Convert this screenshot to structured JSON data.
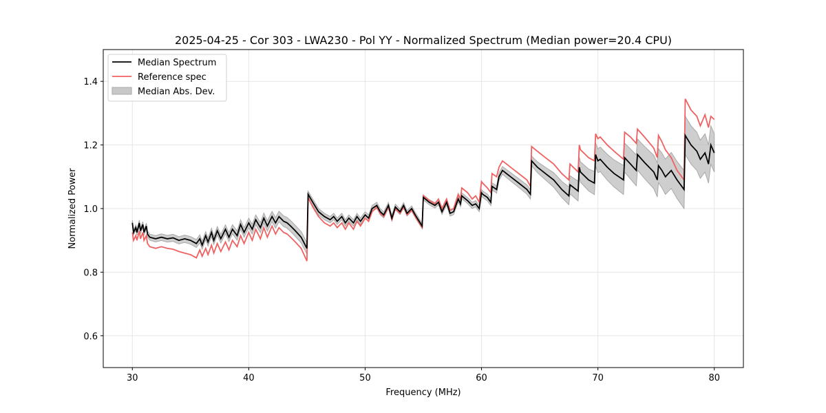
{
  "chart_data": {
    "type": "line",
    "title": "2025-04-25 - Cor 303 - LWA230 - Pol YY - Normalized Spectrum (Median power=20.4 CPU)",
    "xlabel": "Frequency (MHz)",
    "ylabel": "Normalized Power",
    "xlim": [
      27.5,
      82.5
    ],
    "ylim": [
      0.5,
      1.5
    ],
    "xticks": [
      30,
      40,
      50,
      60,
      70,
      80
    ],
    "xtick_labels": [
      "30",
      "40",
      "50",
      "60",
      "70",
      "80"
    ],
    "yticks": [
      0.6,
      0.8,
      1.0,
      1.2,
      1.4
    ],
    "ytick_labels": [
      "0.6",
      "0.8",
      "1.0",
      "1.2",
      "1.4"
    ],
    "grid": true,
    "legend_position": "top-left",
    "legend": [
      {
        "label": "Median Spectrum",
        "kind": "line",
        "color": "#000000"
      },
      {
        "label": "Reference spec",
        "kind": "line",
        "color": "#f06060"
      },
      {
        "label": "Median Abs. Dev.",
        "kind": "fill",
        "color": "#bdbdbd"
      }
    ],
    "series": [
      {
        "name": "Median Spectrum",
        "color": "#000000",
        "x": [
          30.0,
          30.1,
          30.3,
          30.4,
          30.6,
          30.7,
          30.9,
          31.0,
          31.2,
          31.3,
          31.5,
          32.0,
          32.5,
          33.0,
          33.5,
          34.0,
          34.5,
          35.0,
          35.5,
          35.8,
          36.0,
          36.3,
          36.5,
          36.8,
          37.0,
          37.3,
          37.6,
          38.0,
          38.3,
          38.6,
          39.0,
          39.3,
          39.6,
          40.0,
          40.3,
          40.6,
          41.0,
          41.3,
          41.6,
          42.0,
          42.3,
          42.6,
          43.0,
          43.3,
          43.6,
          44.0,
          44.5,
          45.0,
          45.1,
          45.5,
          46.0,
          46.5,
          47.0,
          47.3,
          47.6,
          48.0,
          48.3,
          48.6,
          49.0,
          49.3,
          49.6,
          50.0,
          50.3,
          50.6,
          51.0,
          51.3,
          51.6,
          52.0,
          52.3,
          52.6,
          53.0,
          53.3,
          53.6,
          54.0,
          54.3,
          54.9,
          55.0,
          55.5,
          56.0,
          56.3,
          56.6,
          57.0,
          57.3,
          57.6,
          58.0,
          58.2,
          58.3,
          58.8,
          59.2,
          59.5,
          59.8,
          60.0,
          60.1,
          60.5,
          60.8,
          60.9,
          61.3,
          61.5,
          61.8,
          62.5,
          63.2,
          63.9,
          64.2,
          64.3,
          64.8,
          65.5,
          66.2,
          66.9,
          67.5,
          67.6,
          68.3,
          68.4,
          68.5,
          69.2,
          69.7,
          69.8,
          70.0,
          70.2,
          70.8,
          71.4,
          72.2,
          72.3,
          72.8,
          73.3,
          73.4,
          74.0,
          74.8,
          75.1,
          75.2,
          75.5,
          75.8,
          76.3,
          76.8,
          77.4,
          77.5,
          78.0,
          78.5,
          78.8,
          79.2,
          79.5,
          79.7,
          80.0
        ],
        "y": [
          0.955,
          0.925,
          0.94,
          0.925,
          0.955,
          0.93,
          0.95,
          0.925,
          0.945,
          0.92,
          0.91,
          0.905,
          0.91,
          0.905,
          0.908,
          0.9,
          0.905,
          0.9,
          0.89,
          0.905,
          0.885,
          0.915,
          0.895,
          0.925,
          0.9,
          0.93,
          0.905,
          0.935,
          0.91,
          0.935,
          0.915,
          0.95,
          0.925,
          0.955,
          0.935,
          0.965,
          0.94,
          0.97,
          0.945,
          0.975,
          0.955,
          0.975,
          0.96,
          0.955,
          0.945,
          0.93,
          0.91,
          0.875,
          1.045,
          1.02,
          0.99,
          0.975,
          0.965,
          0.975,
          0.96,
          0.975,
          0.955,
          0.97,
          0.955,
          0.975,
          0.96,
          0.98,
          0.97,
          1.0,
          1.01,
          0.99,
          0.98,
          1.01,
          0.97,
          1.005,
          0.99,
          1.01,
          0.985,
          1.0,
          0.98,
          0.945,
          1.035,
          1.02,
          1.01,
          1.02,
          0.99,
          1.02,
          0.985,
          0.99,
          1.03,
          1.015,
          1.04,
          1.025,
          1.01,
          1.015,
          1.0,
          1.05,
          1.045,
          1.035,
          1.02,
          1.07,
          1.06,
          1.1,
          1.12,
          1.1,
          1.08,
          1.06,
          1.045,
          1.15,
          1.13,
          1.11,
          1.09,
          1.06,
          1.04,
          1.075,
          1.055,
          1.13,
          1.115,
          1.09,
          1.08,
          1.17,
          1.15,
          1.155,
          1.13,
          1.11,
          1.09,
          1.16,
          1.14,
          1.12,
          1.17,
          1.145,
          1.115,
          1.09,
          1.135,
          1.12,
          1.1,
          1.12,
          1.09,
          1.06,
          1.23,
          1.2,
          1.18,
          1.155,
          1.175,
          1.14,
          1.2,
          1.175
        ]
      },
      {
        "name": "Reference spec",
        "color": "#f06060",
        "x": [
          30.0,
          30.1,
          30.3,
          30.4,
          30.6,
          30.7,
          30.9,
          31.0,
          31.2,
          31.3,
          31.5,
          32.0,
          32.5,
          33.0,
          33.5,
          34.0,
          34.5,
          35.0,
          35.5,
          35.8,
          36.0,
          36.3,
          36.5,
          36.8,
          37.0,
          37.3,
          37.6,
          38.0,
          38.3,
          38.6,
          39.0,
          39.3,
          39.6,
          40.0,
          40.3,
          40.6,
          41.0,
          41.3,
          41.6,
          42.0,
          42.3,
          42.6,
          43.0,
          43.3,
          43.6,
          44.0,
          44.5,
          45.0,
          45.1,
          45.5,
          46.0,
          46.5,
          47.0,
          47.3,
          47.6,
          48.0,
          48.3,
          48.6,
          49.0,
          49.3,
          49.6,
          50.0,
          50.3,
          50.6,
          51.0,
          51.3,
          51.6,
          52.0,
          52.3,
          52.6,
          53.0,
          53.3,
          53.6,
          54.0,
          54.3,
          54.9,
          55.0,
          55.5,
          56.0,
          56.3,
          56.6,
          57.0,
          57.3,
          57.6,
          58.0,
          58.2,
          58.3,
          58.8,
          59.2,
          59.5,
          59.8,
          60.0,
          60.1,
          60.5,
          60.8,
          60.9,
          61.3,
          61.5,
          61.8,
          62.5,
          63.2,
          63.9,
          64.2,
          64.3,
          64.8,
          65.5,
          66.2,
          66.9,
          67.5,
          67.6,
          68.3,
          68.4,
          68.5,
          69.2,
          69.7,
          69.8,
          70.0,
          70.2,
          70.8,
          71.4,
          72.2,
          72.3,
          72.8,
          73.3,
          73.4,
          74.0,
          74.8,
          75.1,
          75.2,
          75.5,
          75.8,
          76.3,
          76.8,
          77.4,
          77.5,
          78.0,
          78.5,
          78.8,
          79.2,
          79.5,
          79.7,
          80.0
        ],
        "y": [
          0.925,
          0.9,
          0.915,
          0.9,
          0.93,
          0.905,
          0.925,
          0.9,
          0.915,
          0.89,
          0.88,
          0.875,
          0.88,
          0.875,
          0.872,
          0.865,
          0.86,
          0.855,
          0.845,
          0.87,
          0.85,
          0.875,
          0.855,
          0.885,
          0.86,
          0.89,
          0.865,
          0.895,
          0.87,
          0.9,
          0.88,
          0.915,
          0.89,
          0.925,
          0.9,
          0.935,
          0.905,
          0.94,
          0.91,
          0.945,
          0.92,
          0.94,
          0.925,
          0.92,
          0.91,
          0.895,
          0.875,
          0.835,
          1.035,
          1.005,
          0.975,
          0.955,
          0.945,
          0.955,
          0.94,
          0.955,
          0.935,
          0.955,
          0.935,
          0.96,
          0.945,
          0.97,
          0.96,
          0.99,
          1.005,
          0.985,
          0.975,
          1.005,
          0.965,
          1.0,
          0.985,
          1.005,
          0.98,
          0.995,
          0.975,
          0.94,
          1.04,
          1.025,
          1.015,
          1.03,
          1.0,
          1.03,
          0.995,
          1.0,
          1.045,
          1.03,
          1.065,
          1.05,
          1.03,
          1.04,
          1.02,
          1.085,
          1.08,
          1.065,
          1.05,
          1.11,
          1.1,
          1.13,
          1.15,
          1.13,
          1.11,
          1.09,
          1.07,
          1.195,
          1.18,
          1.16,
          1.14,
          1.11,
          1.09,
          1.14,
          1.115,
          1.2,
          1.185,
          1.16,
          1.15,
          1.235,
          1.22,
          1.225,
          1.2,
          1.18,
          1.155,
          1.24,
          1.225,
          1.205,
          1.25,
          1.225,
          1.19,
          1.16,
          1.23,
          1.21,
          1.185,
          1.16,
          1.12,
          1.09,
          1.345,
          1.31,
          1.29,
          1.26,
          1.295,
          1.255,
          1.29,
          1.28
        ]
      },
      {
        "name": "Median Abs. Dev.",
        "color": "#bdbdbd",
        "x": [
          30.0,
          32.0,
          35.0,
          40.0,
          45.0,
          45.1,
          50.0,
          55.0,
          60.0,
          64.3,
          68.0,
          72.0,
          77.5,
          80.0
        ],
        "half_width": [
          0.008,
          0.01,
          0.012,
          0.015,
          0.018,
          0.01,
          0.01,
          0.008,
          0.01,
          0.015,
          0.03,
          0.045,
          0.06,
          0.06
        ]
      }
    ]
  }
}
